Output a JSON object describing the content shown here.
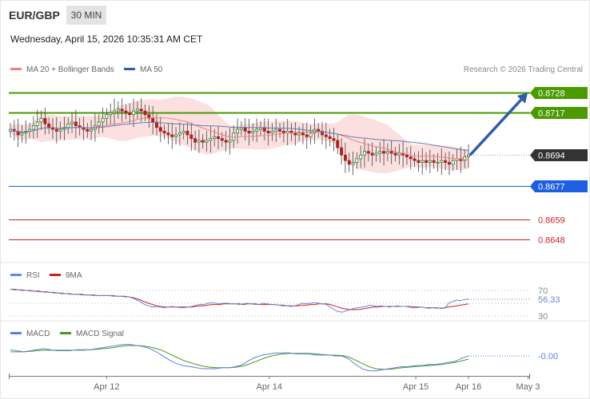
{
  "header": {
    "pair": "EUR/GBP",
    "timeframe": "30 MIN",
    "datetime": "Wednesday, April 15, 2026 10:35:31 AM CET"
  },
  "colors": {
    "resistance": "#4a9a00",
    "current": "#333333",
    "pivot": "#1d5fe0",
    "support": "#cc2222",
    "arrow": "#2e5da8",
    "ma20": "#f08080",
    "band_fill": "#fbdada",
    "ma50": "#5d7fb5",
    "bull": "#2f7d32",
    "bear": "#b02020",
    "rsi": "#6a87d8",
    "rsi_ma": "#cc1f1f",
    "macd": "#5b7fe0",
    "macd_signal": "#4a9a1a"
  },
  "chart_data": [
    {
      "type": "candlestick",
      "legend": [
        {
          "label": "MA 20 + Bollinger Bands",
          "color": "#f08080"
        },
        {
          "label": "MA 50",
          "color": "#2e5da8"
        }
      ],
      "credit": "Research © 2026 Trading Central",
      "ylim": [
        0.8635,
        0.8735
      ],
      "x_ticks": [
        "Apr 12",
        "Apr 14",
        "Apr 15",
        "Apr 16",
        "May 3"
      ],
      "levels": [
        {
          "label": "0.8728",
          "value": 0.8728,
          "kind": "resistance"
        },
        {
          "label": "0.8717",
          "value": 0.8717,
          "kind": "resistance"
        },
        {
          "label": "0.8694",
          "value": 0.8694,
          "kind": "current"
        },
        {
          "label": "0.8677",
          "value": 0.8677,
          "kind": "pivot"
        },
        {
          "label": "0.8659",
          "value": 0.8659,
          "kind": "support"
        },
        {
          "label": "0.8648",
          "value": 0.8648,
          "kind": "support"
        }
      ],
      "close": [
        0.8708,
        0.8707,
        0.8705,
        0.8706,
        0.8707,
        0.8708,
        0.871,
        0.8712,
        0.8714,
        0.8711,
        0.8709,
        0.8708,
        0.8707,
        0.8708,
        0.8709,
        0.8711,
        0.8712,
        0.871,
        0.8709,
        0.8708,
        0.8707,
        0.8708,
        0.871,
        0.8712,
        0.8714,
        0.8716,
        0.8717,
        0.8718,
        0.8719,
        0.8718,
        0.8717,
        0.8716,
        0.8718,
        0.8719,
        0.8718,
        0.8716,
        0.8714,
        0.8712,
        0.8709,
        0.8707,
        0.8706,
        0.8705,
        0.8704,
        0.8705,
        0.8706,
        0.8707,
        0.8705,
        0.8703,
        0.8701,
        0.8702,
        0.8701,
        0.8702,
        0.8703,
        0.8704,
        0.8703,
        0.8702,
        0.8701,
        0.8702,
        0.8706,
        0.8708,
        0.8709,
        0.8707,
        0.8706,
        0.8707,
        0.8708,
        0.8709,
        0.8707,
        0.8706,
        0.8707,
        0.8708,
        0.8707,
        0.8706,
        0.8707,
        0.8706,
        0.8705,
        0.8706,
        0.8705,
        0.8704,
        0.8706,
        0.8708,
        0.8707,
        0.8705,
        0.8704,
        0.8703,
        0.8702,
        0.8698,
        0.8694,
        0.8691,
        0.8689,
        0.869,
        0.8692,
        0.8694,
        0.8696,
        0.8695,
        0.8694,
        0.8695,
        0.8696,
        0.8695,
        0.8696,
        0.8695,
        0.8694,
        0.8695,
        0.8694,
        0.8693,
        0.8692,
        0.8691,
        0.869,
        0.8691,
        0.869,
        0.8691,
        0.869,
        0.869,
        0.8691,
        0.869,
        0.8689,
        0.8691,
        0.8692,
        0.8691,
        0.8693,
        0.8694
      ],
      "arrow_target": 0.8728
    },
    {
      "type": "line",
      "series": [
        {
          "name": "RSI"
        },
        {
          "name": "9MA"
        }
      ],
      "y_ticks": [
        "70",
        "30"
      ],
      "last_value": "56.33",
      "rsi": [
        72,
        71,
        71,
        70,
        70,
        69,
        69,
        68,
        68,
        67,
        67,
        66,
        66,
        65,
        65,
        64,
        64,
        64,
        63,
        63,
        63,
        62,
        62,
        62,
        62,
        62,
        61,
        61,
        61,
        60,
        60,
        58,
        55,
        52,
        48,
        46,
        44,
        45,
        44,
        43,
        44,
        45,
        44,
        43,
        43,
        44,
        45,
        47,
        48,
        48,
        50,
        51,
        50,
        49,
        50,
        50,
        49,
        49,
        48,
        49,
        50,
        49,
        48,
        48,
        50,
        49,
        48,
        48,
        47,
        46,
        46,
        45,
        46,
        48,
        50,
        49,
        50,
        51,
        50,
        49,
        48,
        44,
        40,
        37,
        36,
        38,
        40,
        42,
        43,
        44,
        45,
        47,
        46,
        45,
        46,
        45,
        44,
        45,
        46,
        45,
        45,
        44,
        43,
        43,
        44,
        43,
        42,
        43,
        42,
        43,
        42,
        50,
        53,
        55,
        54,
        56,
        56.33
      ],
      "rsi_ma": [
        72,
        72,
        71,
        71,
        70,
        70,
        69,
        69,
        68,
        68,
        67,
        67,
        66,
        66,
        65,
        65,
        64,
        64,
        64,
        63,
        63,
        63,
        62,
        62,
        62,
        62,
        62,
        61,
        61,
        61,
        60,
        59,
        57,
        55,
        52,
        50,
        48,
        46,
        45,
        44,
        44,
        44,
        44,
        44,
        44,
        44,
        44,
        45,
        46,
        46,
        47,
        48,
        48,
        48,
        49,
        49,
        49,
        49,
        49,
        48,
        49,
        49,
        49,
        48,
        48,
        48,
        48,
        48,
        47,
        47,
        46,
        46,
        46,
        46,
        47,
        47,
        48,
        48,
        49,
        49,
        49,
        48,
        46,
        44,
        42,
        41,
        40,
        40,
        40,
        41,
        42,
        43,
        44,
        44,
        45,
        45,
        45,
        45,
        45,
        45,
        45,
        45,
        44,
        44,
        44,
        43,
        43,
        43,
        43,
        42,
        43,
        44,
        45,
        46,
        47,
        48,
        49
      ],
      "ylim": [
        25,
        85
      ]
    },
    {
      "type": "line",
      "series": [
        {
          "name": "MACD"
        },
        {
          "name": "MACD Signal"
        }
      ],
      "last_value": "-0.00",
      "macd": [
        0.6,
        0.5,
        0.4,
        0.5,
        0.6,
        0.7,
        0.6,
        0.5,
        0.5,
        0.5,
        0.6,
        0.6,
        0.6,
        0.7,
        0.8,
        0.9,
        1.0,
        1.1,
        1.1,
        1.0,
        0.9,
        0.7,
        0.4,
        0.0,
        -0.4,
        -0.7,
        -0.9,
        -1.0,
        -1.1,
        -1.2,
        -1.2,
        -1.2,
        -1.1,
        -1.1,
        -1.0,
        -0.8,
        -0.4,
        -0.1,
        0.1,
        0.2,
        0.3,
        0.3,
        0.3,
        0.2,
        0.2,
        0.2,
        0.1,
        0.1,
        0.1,
        0.0,
        0.0,
        -0.3,
        -0.8,
        -1.2,
        -1.4,
        -1.4,
        -1.3,
        -1.2,
        -1.1,
        -1.0,
        -1.0,
        -0.9,
        -0.9,
        -0.8,
        -0.8,
        -0.7,
        -0.6,
        -0.5,
        -0.2,
        0.0
      ],
      "signal": [
        0.4,
        0.4,
        0.4,
        0.45,
        0.5,
        0.55,
        0.55,
        0.55,
        0.55,
        0.55,
        0.55,
        0.55,
        0.6,
        0.65,
        0.7,
        0.75,
        0.85,
        0.95,
        1.0,
        1.0,
        0.95,
        0.85,
        0.7,
        0.5,
        0.2,
        -0.1,
        -0.4,
        -0.6,
        -0.8,
        -0.95,
        -1.05,
        -1.1,
        -1.1,
        -1.1,
        -1.05,
        -0.95,
        -0.75,
        -0.5,
        -0.25,
        -0.05,
        0.1,
        0.2,
        0.25,
        0.25,
        0.25,
        0.25,
        0.2,
        0.15,
        0.1,
        0.08,
        0.05,
        -0.1,
        -0.4,
        -0.7,
        -1.0,
        -1.2,
        -1.25,
        -1.25,
        -1.2,
        -1.1,
        -1.05,
        -1.0,
        -0.95,
        -0.9,
        -0.85,
        -0.8,
        -0.7,
        -0.6,
        -0.45,
        -0.3
      ],
      "ylim": [
        -1.8,
        1.6
      ]
    }
  ]
}
